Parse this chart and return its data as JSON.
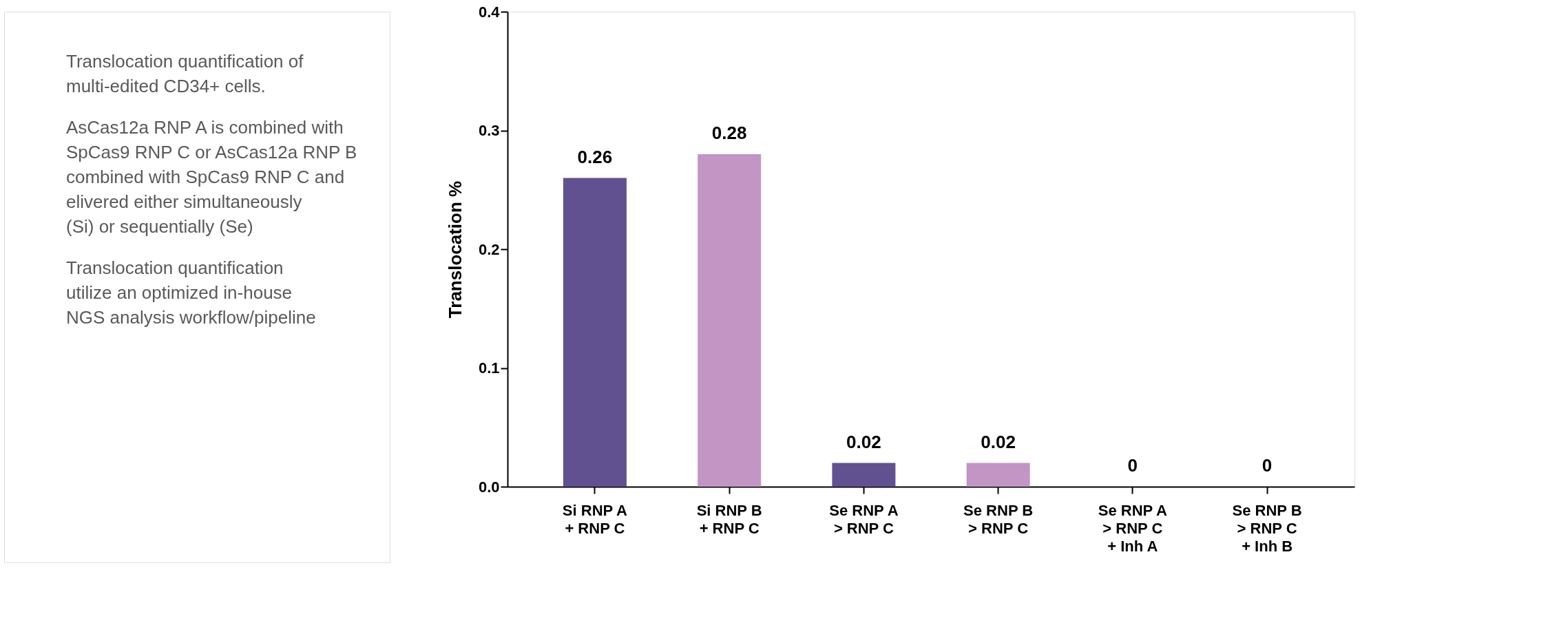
{
  "chart_data": {
    "type": "bar",
    "ylabel": "Translocation %",
    "categories": [
      "Si RNP A\n+ RNP C",
      "Si RNP B\n+ RNP C",
      "Se RNP A\n> RNP C",
      "Se RNP B\n> RNP C",
      "Se RNP A\n> RNP C\n+ Inh A",
      "Se RNP B\n> RNP C\n+ Inh B"
    ],
    "values": [
      0.26,
      0.28,
      0.02,
      0.02,
      0,
      0
    ],
    "colors": [
      "#625191",
      "#c295c5",
      "#625191",
      "#c295c5",
      "#625191",
      "#c295c5"
    ],
    "ylim": [
      0,
      0.4
    ],
    "yticks": [
      {
        "value": 0,
        "label": "0.0"
      },
      {
        "value": 0.1,
        "label": "0.1"
      },
      {
        "value": 0.2,
        "label": "0.2"
      },
      {
        "value": 0.3,
        "label": "0.3"
      },
      {
        "value": 0.4,
        "label": "0.4"
      }
    ],
    "data_labels": true,
    "grid": false,
    "annotations": [
      "Translocation quantification of multi-edited CD34+ cells.",
      "AsCas12a RNP A is combined with SpCas9 RNP C or AsCas12a RNP B combined with SpCas9 RNP C and elivered either simultaneously (Si) or sequentially (Se)",
      "Translocation quantification utilize an optimized in-house NGS analysis workflow/pipeline"
    ]
  }
}
